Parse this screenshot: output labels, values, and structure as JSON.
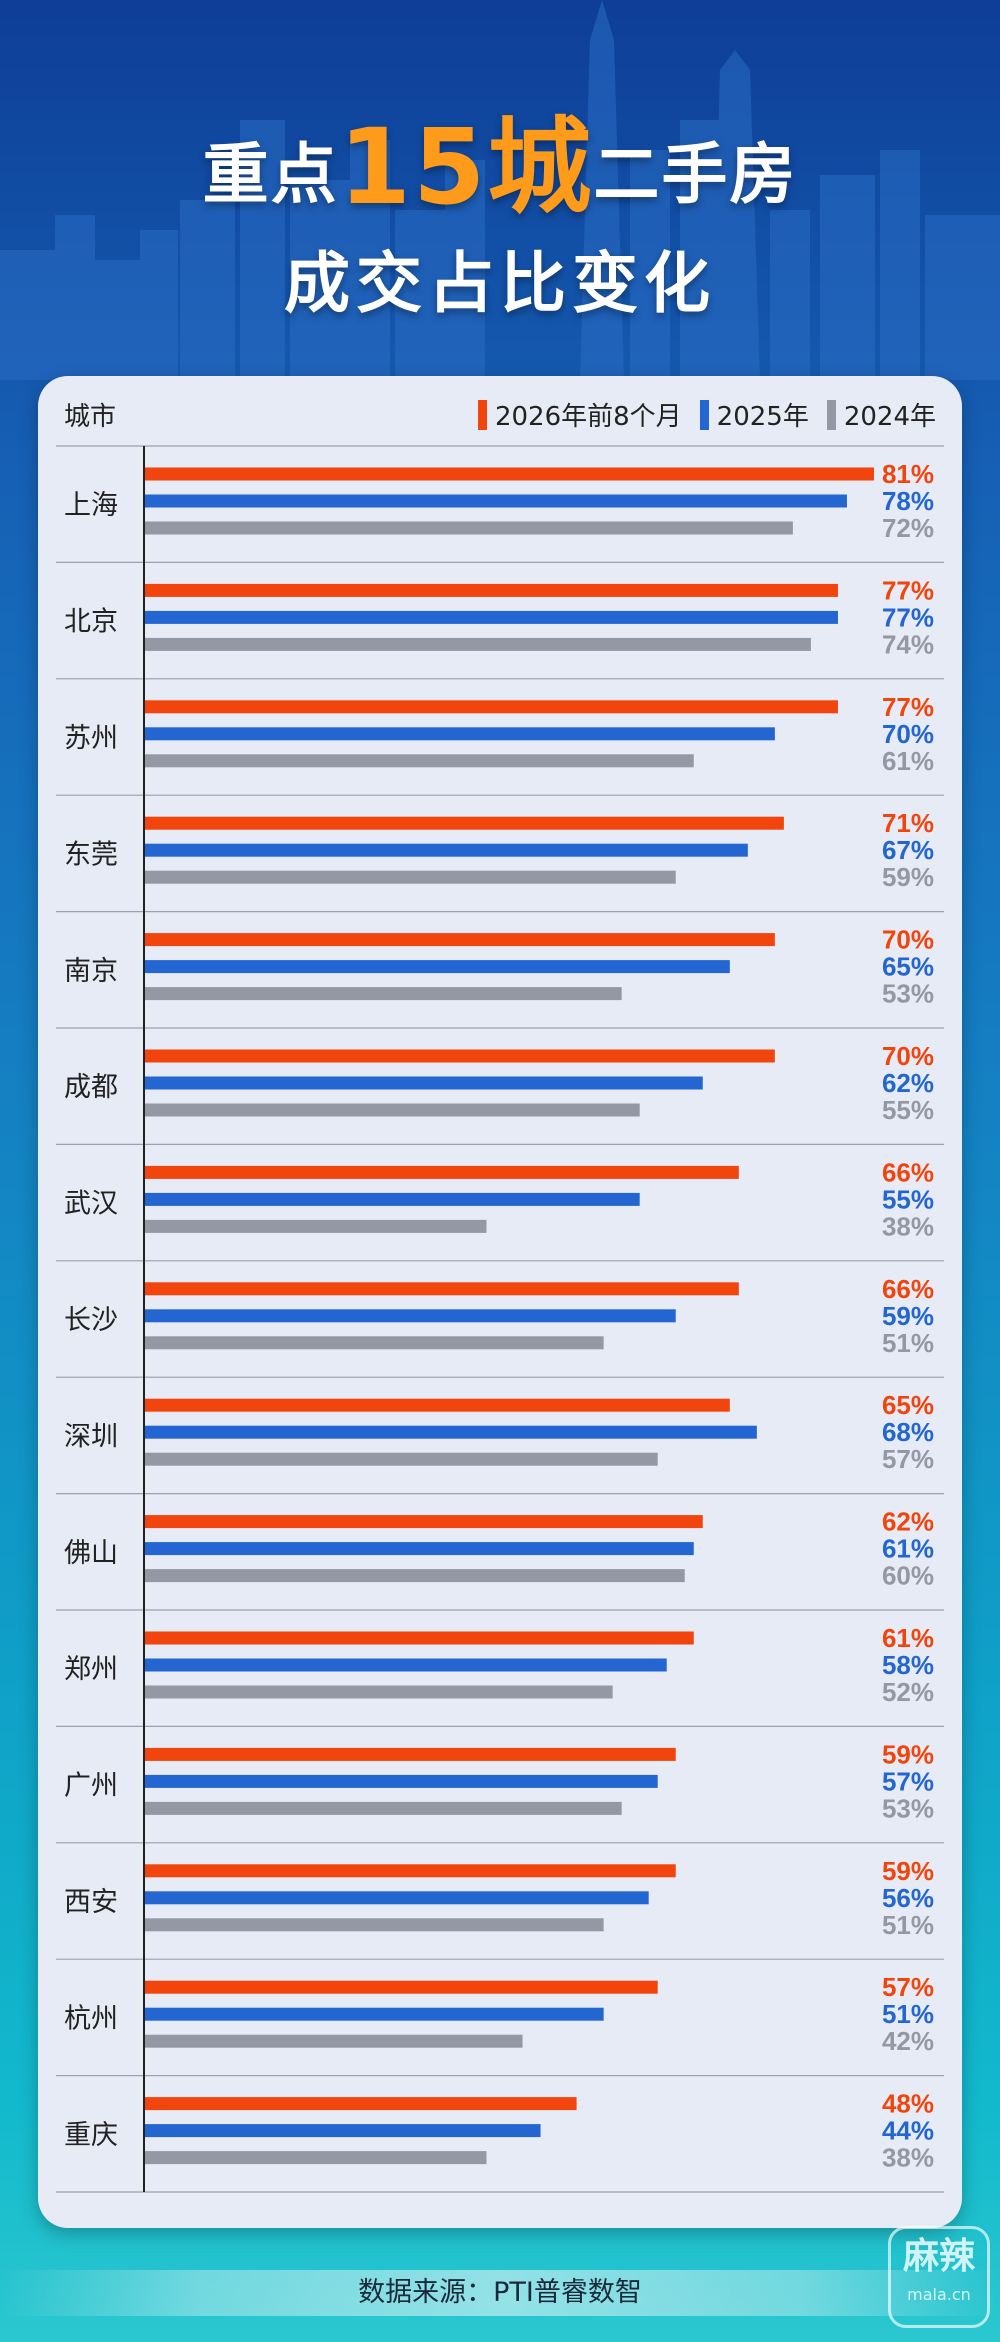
{
  "title": {
    "line1_before": "重点",
    "line1_highlight": "15城",
    "line1_after": "二手房",
    "line2": "成交占比变化"
  },
  "colors": {
    "s2026": "#f2450d",
    "s2025": "#2366d1",
    "s2024": "#9497a4",
    "title_highlight": "#ff9b1a"
  },
  "chart_data": {
    "type": "bar",
    "orientation": "horizontal",
    "column_header": "城市",
    "categories": [
      "上海",
      "北京",
      "苏州",
      "东莞",
      "南京",
      "成都",
      "武汉",
      "长沙",
      "深圳",
      "佛山",
      "郑州",
      "广州",
      "西安",
      "杭州",
      "重庆"
    ],
    "series": [
      {
        "name": "2026年前8个月",
        "values": [
          81,
          77,
          77,
          71,
          70,
          70,
          66,
          66,
          65,
          62,
          61,
          59,
          59,
          57,
          48
        ]
      },
      {
        "name": "2025年",
        "values": [
          78,
          77,
          70,
          67,
          65,
          62,
          55,
          59,
          68,
          61,
          58,
          57,
          56,
          51,
          44
        ]
      },
      {
        "name": "2024年",
        "values": [
          72,
          74,
          61,
          59,
          53,
          55,
          38,
          51,
          57,
          60,
          52,
          53,
          51,
          42,
          38
        ]
      }
    ],
    "value_suffix": "%",
    "xlim": [
      0,
      81
    ],
    "legend_position": "top-right"
  },
  "footer": {
    "source": "数据来源：PTI普睿数智"
  },
  "watermark": {
    "main": "麻辣",
    "sub": "mala.cn"
  }
}
